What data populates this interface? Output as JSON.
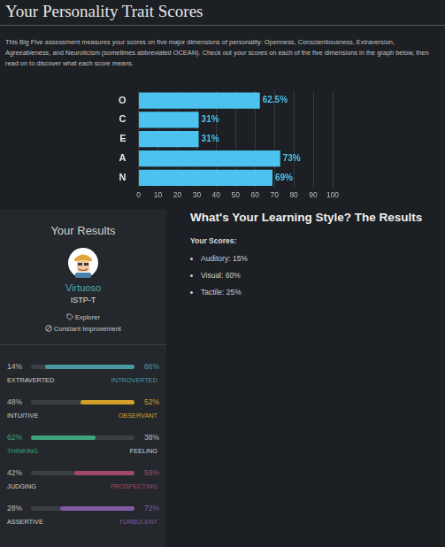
{
  "header": {
    "title": "Your Personality Trait Scores",
    "description": "This Big Five assessment measures your scores on five major dimensions of personality: Openness, Conscientiousness, Extraversion, Agreeableness, and Neuroticism (sometimes abbreviated OCEAN). Check out your scores on each of the five dimensions in the graph below, then read on to discover what each score means."
  },
  "chart_data": {
    "type": "bar",
    "orientation": "horizontal",
    "categories": [
      "O",
      "C",
      "E",
      "A",
      "N"
    ],
    "values": [
      62.5,
      31,
      31,
      73,
      69
    ],
    "value_labels": [
      "62.5%",
      "31%",
      "31%",
      "73%",
      "69%"
    ],
    "color": "#4cc3ef",
    "xlim": [
      0,
      100
    ],
    "xticks": [
      0,
      10,
      20,
      30,
      40,
      50,
      60,
      70,
      80,
      90,
      100
    ],
    "grid": true,
    "data_labels": true
  },
  "results": {
    "heading": "Your Results",
    "type_name": "Virtuoso",
    "type_code": "ISTP-T",
    "role": "Explorer",
    "strategy": "Constant Improvement",
    "traits": [
      {
        "left_name": "EXTRAVERTED",
        "left_value": 14,
        "left_label": "14%",
        "right_name": "INTROVERTED",
        "right_value": 86,
        "right_label": "86%",
        "color": "#4a9aa6"
      },
      {
        "left_name": "INTUITIVE",
        "left_value": 48,
        "left_label": "48%",
        "right_name": "OBSERVANT",
        "right_value": 52,
        "right_label": "52%",
        "color": "#d39f2b"
      },
      {
        "left_name": "THINKING",
        "left_value": 62,
        "left_label": "62%",
        "right_name": "FEELING",
        "right_value": 38,
        "right_label": "38%",
        "color": "#3fa37a"
      },
      {
        "left_name": "JUDGING",
        "left_value": 42,
        "left_label": "42%",
        "right_name": "PROSPECTING",
        "right_value": 58,
        "right_label": "58%",
        "color": "#a2496b"
      },
      {
        "left_name": "ASSERTIVE",
        "left_value": 28,
        "left_label": "28%",
        "right_name": "TURBULENT",
        "right_value": 72,
        "right_label": "72%",
        "color": "#7d5aa3"
      }
    ]
  },
  "learning_style": {
    "title": "What's Your Learning Style? The Results",
    "subtitle": "Your Scores:",
    "items": [
      "Auditory: 15%",
      "Visual: 60%",
      "Tactile: 25%"
    ]
  }
}
